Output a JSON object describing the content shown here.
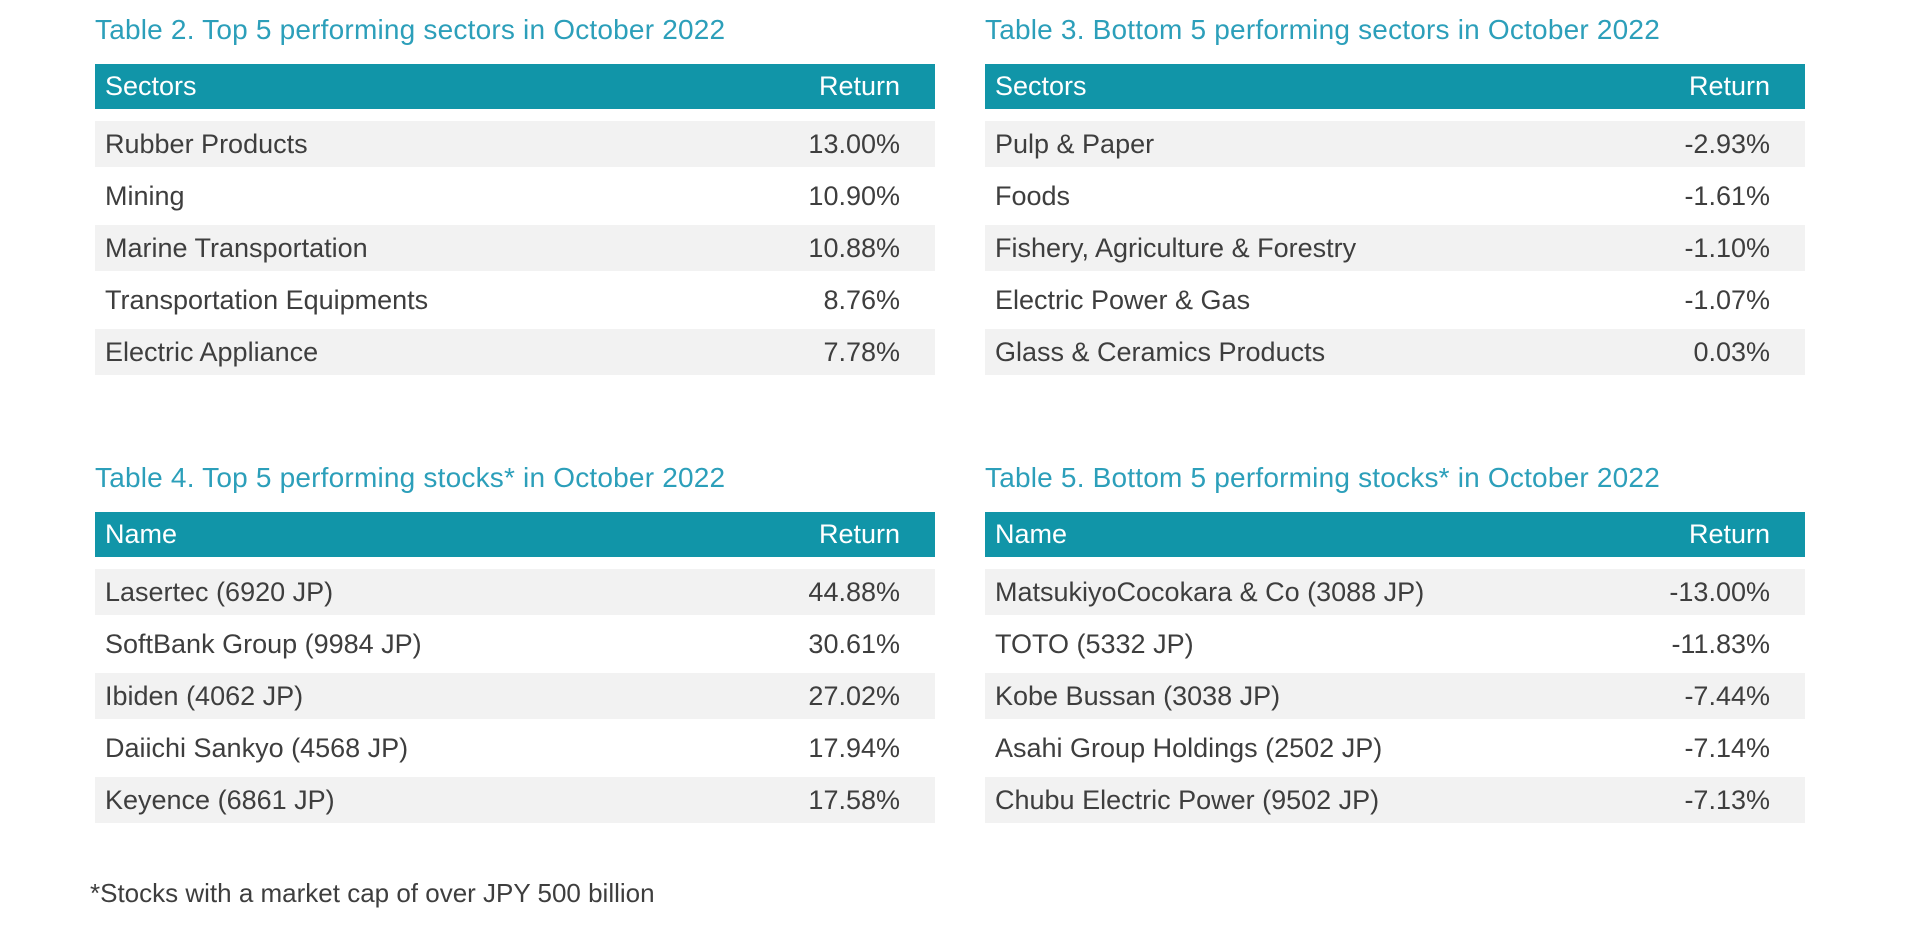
{
  "colors": {
    "header_bg": "#1195A8",
    "title_text": "#2C9FBA",
    "stripe_bg": "#F2F2F2",
    "body_text": "#3E3E3E",
    "header_text": "#FFFFFF"
  },
  "tables": [
    {
      "title": "Table 2. Top 5 performing sectors in October 2022",
      "col_name": "Sectors",
      "col_return": "Return",
      "rows": [
        {
          "name": "Rubber Products",
          "return": "13.00%"
        },
        {
          "name": "Mining",
          "return": "10.90%"
        },
        {
          "name": "Marine Transportation",
          "return": "10.88%"
        },
        {
          "name": "Transportation Equipments",
          "return": "8.76%"
        },
        {
          "name": "Electric Appliance",
          "return": "7.78%"
        }
      ]
    },
    {
      "title": "Table 3. Bottom 5 performing sectors in October 2022",
      "col_name": "Sectors",
      "col_return": "Return",
      "rows": [
        {
          "name": "Pulp & Paper",
          "return": "-2.93%"
        },
        {
          "name": "Foods",
          "return": "-1.61%"
        },
        {
          "name": "Fishery, Agriculture & Forestry",
          "return": "-1.10%"
        },
        {
          "name": "Electric Power & Gas",
          "return": "-1.07%"
        },
        {
          "name": "Glass & Ceramics Products",
          "return": "0.03%"
        }
      ]
    },
    {
      "title": "Table 4. Top 5 performing stocks* in October 2022",
      "col_name": "Name",
      "col_return": "Return",
      "rows": [
        {
          "name": "Lasertec (6920 JP)",
          "return": "44.88%"
        },
        {
          "name": "SoftBank Group (9984 JP)",
          "return": "30.61%"
        },
        {
          "name": "Ibiden (4062 JP)",
          "return": "27.02%"
        },
        {
          "name": "Daiichi Sankyo (4568 JP)",
          "return": "17.94%"
        },
        {
          "name": "Keyence (6861 JP)",
          "return": "17.58%"
        }
      ]
    },
    {
      "title": "Table 5. Bottom 5 performing stocks* in October 2022",
      "col_name": "Name",
      "col_return": "Return",
      "rows": [
        {
          "name": "MatsukiyoCocokara & Co (3088 JP)",
          "return": "-13.00%"
        },
        {
          "name": "TOTO (5332 JP)",
          "return": "-11.83%"
        },
        {
          "name": "Kobe Bussan (3038 JP)",
          "return": "-7.44%"
        },
        {
          "name": "Asahi Group Holdings (2502 JP)",
          "return": "-7.14%"
        },
        {
          "name": "Chubu Electric Power (9502 JP)",
          "return": "-7.13%"
        }
      ]
    }
  ],
  "footnote": "*Stocks with a market cap of over JPY 500 billion"
}
